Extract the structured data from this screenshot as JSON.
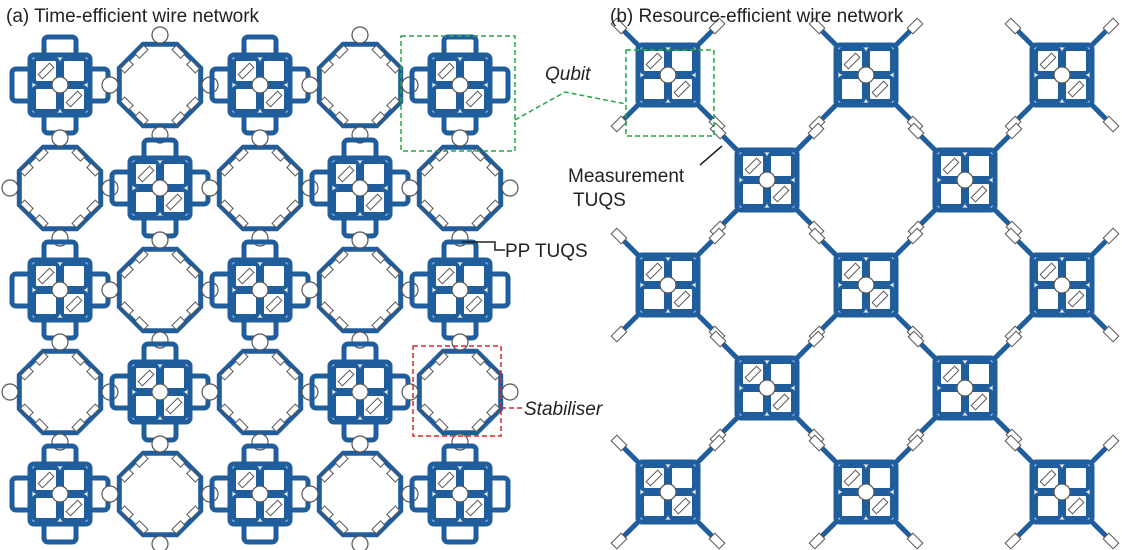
{
  "panels": [
    {
      "title": "(a) Time-efficient wire network"
    },
    {
      "title": "(b) Resource-efficient wire network"
    }
  ],
  "annotations": {
    "qubit": "Qubit",
    "measurement": [
      "Measurement",
      "TUQS"
    ],
    "pp_tuqs": "PP TUQS",
    "stabiliser": "Stabiliser"
  }
}
